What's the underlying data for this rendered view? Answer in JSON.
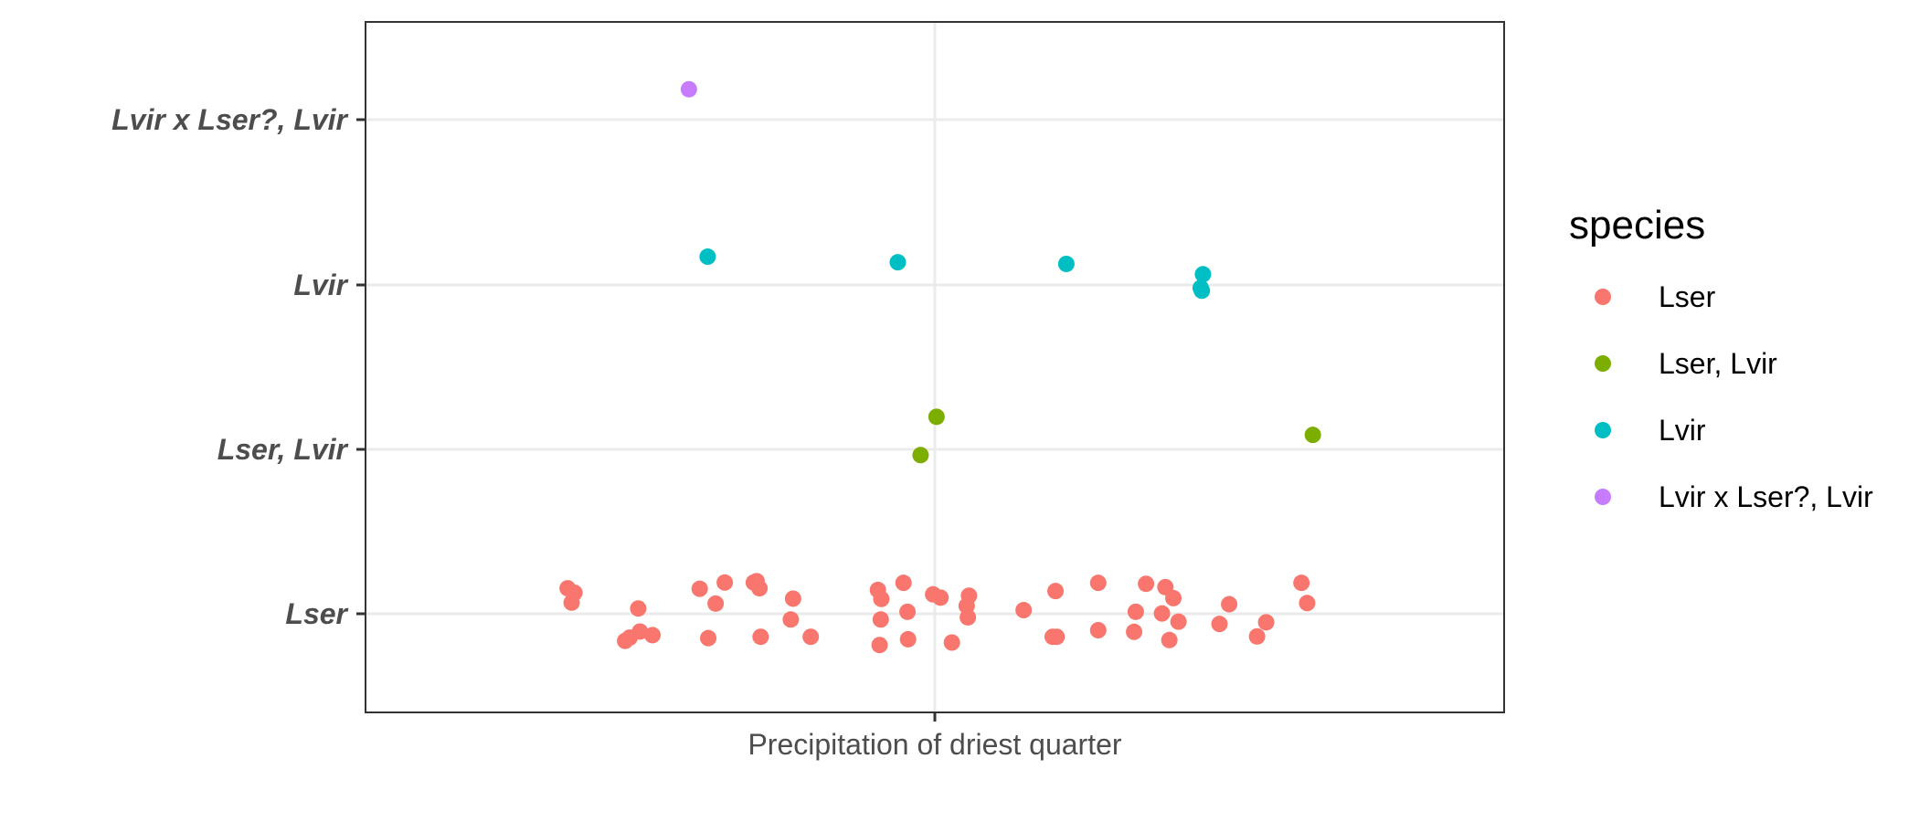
{
  "chart_data": {
    "type": "scatter",
    "xlabel": "Precipitation of driest quarter",
    "y_categories": [
      "Lser",
      "Lser, Lvir",
      "Lvir",
      "Lvir x Lser?, Lvir"
    ],
    "x_tick_labels": [
      "Precipitation of driest quarter"
    ],
    "x_range": [
      -1,
      1
    ],
    "grid": true,
    "legend": {
      "title": "species",
      "placement": "right",
      "entries": [
        "Lser",
        "Lser, Lvir",
        "Lvir",
        "Lvir x Lser?, Lvir"
      ]
    },
    "colors": {
      "Lser": "#F8766D",
      "Lser, Lvir": "#7CAE00",
      "Lvir": "#00BFC4",
      "Lvir x Lser?, Lvir": "#C77CFF"
    },
    "series": [
      {
        "name": "Lser",
        "points": [
          {
            "x": -0.645,
            "y": 0.155
          },
          {
            "x": -0.633,
            "y": 0.128
          },
          {
            "x": -0.638,
            "y": 0.068
          },
          {
            "x": -0.521,
            "y": 0.032
          },
          {
            "x": -0.544,
            "y": -0.165
          },
          {
            "x": -0.536,
            "y": -0.145
          },
          {
            "x": -0.518,
            "y": -0.108
          },
          {
            "x": -0.496,
            "y": -0.13
          },
          {
            "x": -0.413,
            "y": 0.152
          },
          {
            "x": -0.385,
            "y": 0.062
          },
          {
            "x": -0.369,
            "y": 0.19
          },
          {
            "x": -0.398,
            "y": -0.148
          },
          {
            "x": -0.313,
            "y": 0.198
          },
          {
            "x": -0.308,
            "y": 0.155
          },
          {
            "x": -0.318,
            "y": 0.19
          },
          {
            "x": -0.249,
            "y": 0.092
          },
          {
            "x": -0.253,
            "y": -0.035
          },
          {
            "x": -0.306,
            "y": -0.14
          },
          {
            "x": -0.218,
            "y": -0.14
          },
          {
            "x": -0.1,
            "y": 0.145
          },
          {
            "x": -0.094,
            "y": 0.09
          },
          {
            "x": -0.055,
            "y": 0.188
          },
          {
            "x": -0.095,
            "y": -0.035
          },
          {
            "x": -0.048,
            "y": 0.012
          },
          {
            "x": -0.097,
            "y": -0.19
          },
          {
            "x": -0.047,
            "y": -0.155
          },
          {
            "x": -0.003,
            "y": 0.118
          },
          {
            "x": 0.01,
            "y": 0.098
          },
          {
            "x": 0.06,
            "y": 0.11
          },
          {
            "x": 0.056,
            "y": 0.048
          },
          {
            "x": 0.058,
            "y": -0.022
          },
          {
            "x": 0.03,
            "y": -0.175
          },
          {
            "x": 0.156,
            "y": 0.022
          },
          {
            "x": 0.212,
            "y": 0.138
          },
          {
            "x": 0.207,
            "y": -0.14
          },
          {
            "x": 0.214,
            "y": -0.14
          },
          {
            "x": 0.287,
            "y": 0.188
          },
          {
            "x": 0.287,
            "y": -0.1
          },
          {
            "x": 0.371,
            "y": 0.182
          },
          {
            "x": 0.353,
            "y": 0.012
          },
          {
            "x": 0.35,
            "y": -0.11
          },
          {
            "x": 0.405,
            "y": 0.162
          },
          {
            "x": 0.419,
            "y": 0.095
          },
          {
            "x": 0.399,
            "y": 0.002
          },
          {
            "x": 0.428,
            "y": -0.048
          },
          {
            "x": 0.412,
            "y": -0.16
          },
          {
            "x": 0.517,
            "y": 0.058
          },
          {
            "x": 0.5,
            "y": -0.062
          },
          {
            "x": 0.582,
            "y": -0.052
          },
          {
            "x": 0.566,
            "y": -0.138
          },
          {
            "x": 0.644,
            "y": 0.188
          },
          {
            "x": 0.654,
            "y": 0.065
          }
        ]
      },
      {
        "name": "Lser, Lvir",
        "points": [
          {
            "x": 0.003,
            "y": 0.198
          },
          {
            "x": -0.025,
            "y": -0.035
          },
          {
            "x": 0.664,
            "y": 0.088
          }
        ]
      },
      {
        "name": "Lvir",
        "points": [
          {
            "x": -0.399,
            "y": 0.172
          },
          {
            "x": -0.065,
            "y": 0.138
          },
          {
            "x": 0.231,
            "y": 0.128
          },
          {
            "x": 0.471,
            "y": 0.065
          },
          {
            "x": 0.467,
            "y": -0.018
          },
          {
            "x": 0.469,
            "y": -0.035
          }
        ]
      },
      {
        "name": "Lvir x Lser?, Lvir",
        "points": [
          {
            "x": -0.432,
            "y": 0.185
          }
        ]
      }
    ]
  }
}
